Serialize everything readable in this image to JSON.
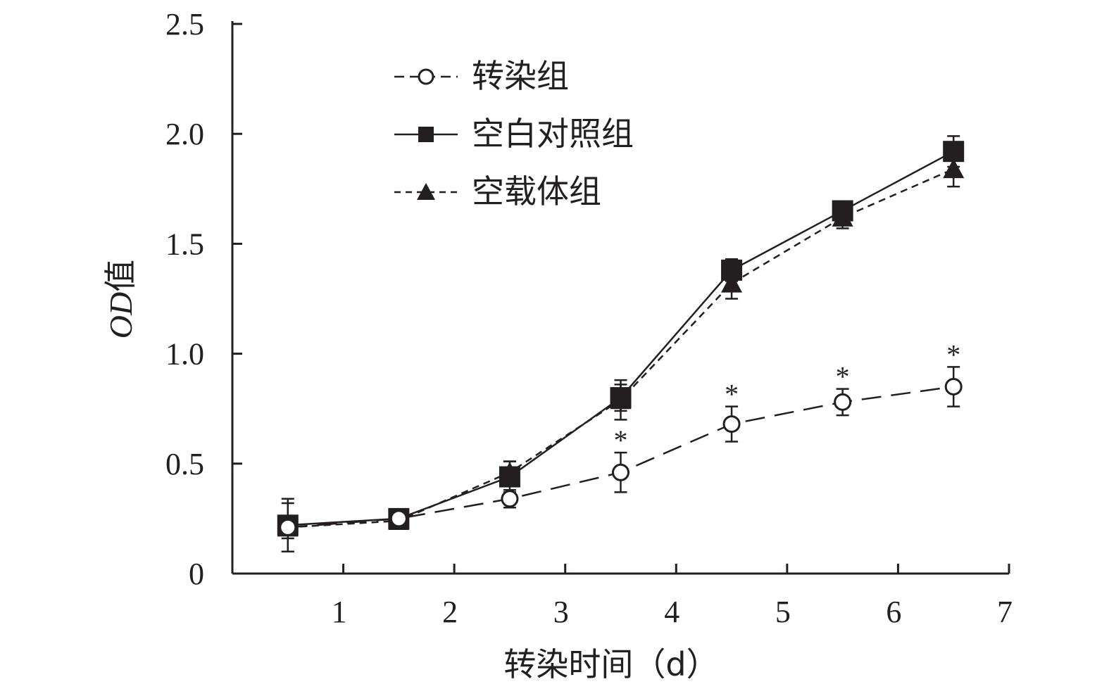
{
  "chart_data": {
    "type": "line",
    "xlabel": "转染时间（d）",
    "ylabel_italic": "OD",
    "ylabel_suffix": "值",
    "xlim": [
      0,
      7
    ],
    "ylim": [
      0,
      2.5
    ],
    "x_ticks": [
      1,
      2,
      3,
      4,
      5,
      6,
      7
    ],
    "y_ticks": [
      0,
      0.5,
      1.0,
      1.5,
      2.0,
      2.5
    ],
    "y_tick_labels": [
      "0",
      "0.5",
      "1.0",
      "1.5",
      "2.0",
      "2.5"
    ],
    "grid": false,
    "legend_position": "top-left",
    "x": [
      0.5,
      1.5,
      2.5,
      3.5,
      4.5,
      5.5,
      6.5
    ],
    "series": [
      {
        "name": "转染组",
        "marker": "open-circle",
        "line": "long-dash",
        "values": [
          0.21,
          0.25,
          0.34,
          0.46,
          0.68,
          0.78,
          0.85
        ],
        "error": [
          0.05,
          0.02,
          0.04,
          0.09,
          0.08,
          0.06,
          0.09
        ],
        "significance": [
          "",
          "",
          "",
          "*",
          "*",
          "*",
          "*"
        ]
      },
      {
        "name": "空白对照组",
        "marker": "filled-square",
        "line": "solid",
        "values": [
          0.22,
          0.25,
          0.44,
          0.8,
          1.38,
          1.65,
          1.92
        ],
        "error": [
          0.12,
          0.03,
          0.07,
          0.06,
          0.05,
          0.03,
          0.07
        ],
        "significance": [
          "",
          "",
          "",
          "",
          "",
          "",
          ""
        ]
      },
      {
        "name": "空载体组",
        "marker": "filled-triangle",
        "line": "short-dash",
        "values": [
          0.21,
          0.24,
          0.46,
          0.79,
          1.32,
          1.62,
          1.84
        ],
        "error": [
          0.11,
          0.03,
          0.05,
          0.09,
          0.07,
          0.05,
          0.08
        ],
        "significance": [
          "",
          "",
          "",
          "",
          "",
          "",
          ""
        ]
      }
    ]
  }
}
